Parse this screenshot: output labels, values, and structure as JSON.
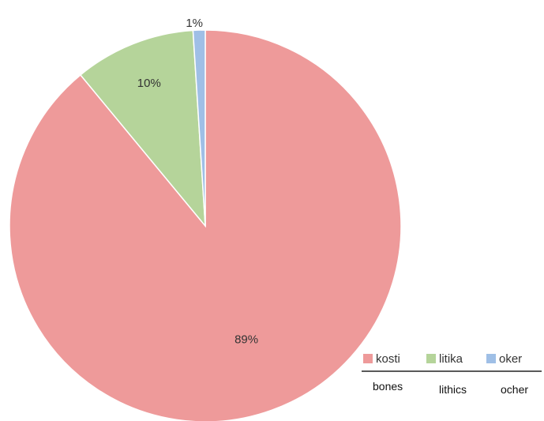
{
  "chart_data": {
    "type": "pie",
    "categories": [
      "kosti",
      "litika",
      "oker"
    ],
    "values": [
      89,
      10,
      1
    ],
    "labels": [
      "89%",
      "10%",
      "1%"
    ],
    "colors": [
      "#ee9a9a",
      "#b5d49a",
      "#9fbfe6"
    ],
    "legend_placement": "bottom-right",
    "translations": [
      "bones",
      "lithics",
      "ocher"
    ]
  }
}
